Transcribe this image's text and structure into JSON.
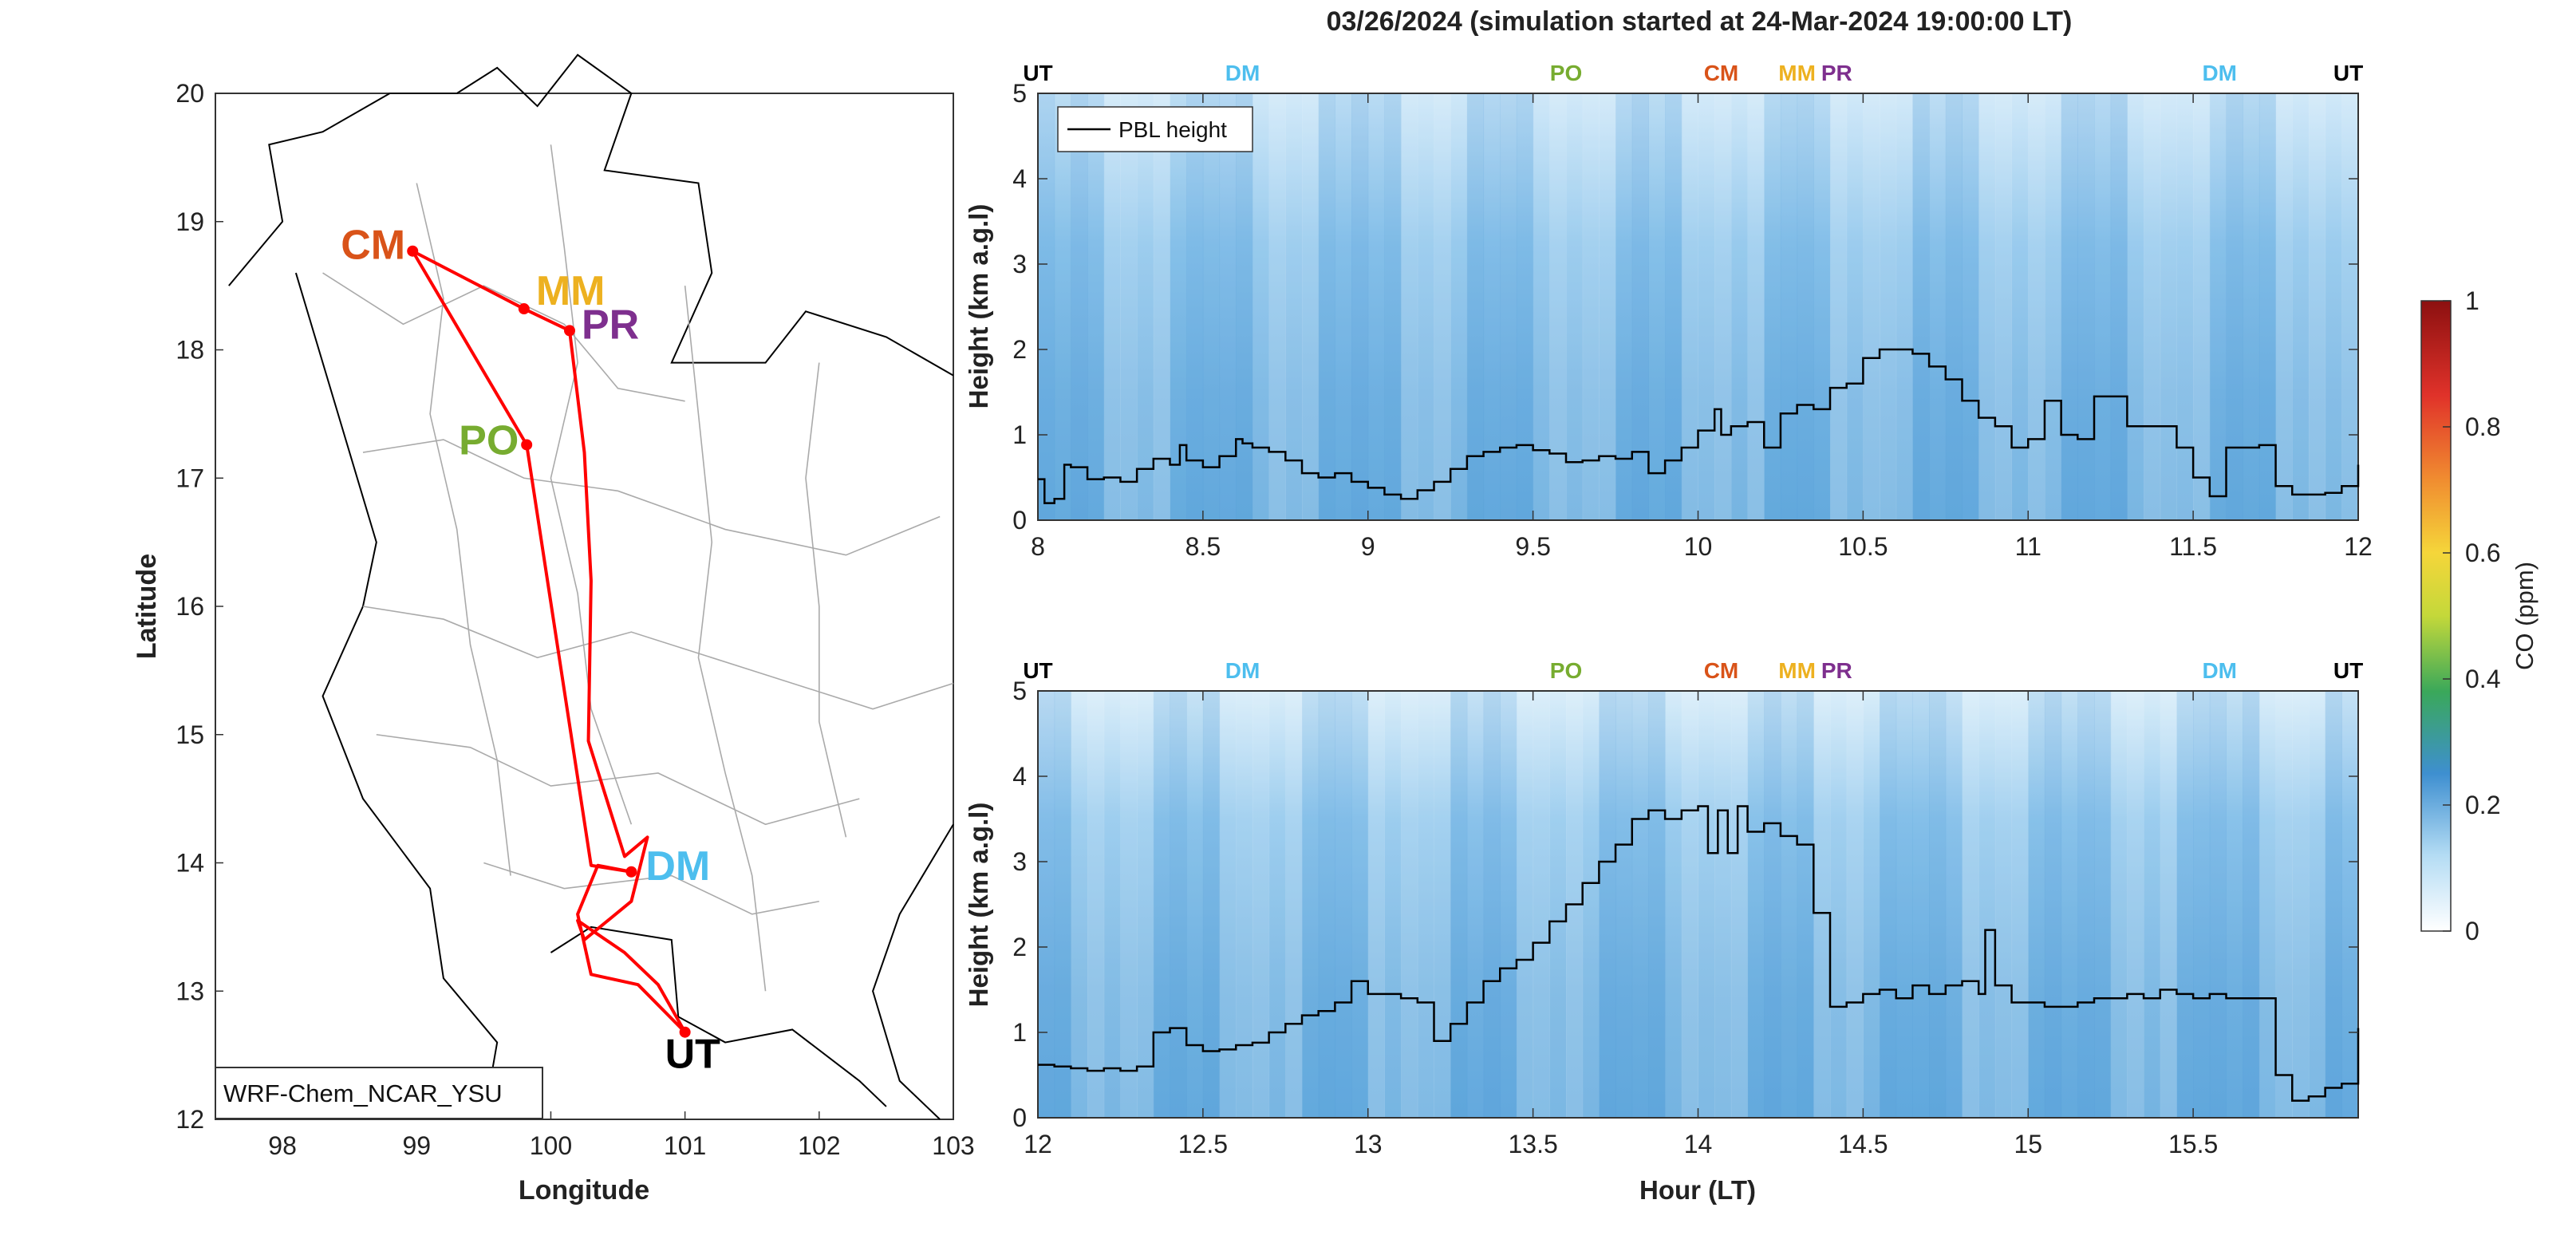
{
  "figure_title": "03/26/2024 (simulation started at 24-Mar-2024 19:00:00 LT)",
  "colors": {
    "CM": "#D95319",
    "MM": "#EDB120",
    "PR": "#7E2F8E",
    "PO": "#77AC30",
    "DM": "#4DBEEE",
    "UT": "#000000",
    "route": "#FF0000",
    "pbl_line": "#000000"
  },
  "chart_data": [
    {
      "type": "map",
      "xlabel": "Longitude",
      "ylabel": "Latitude",
      "xlim": [
        97.5,
        103
      ],
      "ylim": [
        12,
        20
      ],
      "xticks": [
        98,
        99,
        100,
        101,
        102,
        103
      ],
      "yticks": [
        12,
        13,
        14,
        15,
        16,
        17,
        18,
        19,
        20
      ],
      "legend_text": "WRF-Chem_NCAR_YSU",
      "stations": [
        {
          "name": "CM",
          "lon": 98.97,
          "lat": 18.77
        },
        {
          "name": "MM",
          "lon": 99.8,
          "lat": 18.32
        },
        {
          "name": "PR",
          "lon": 100.14,
          "lat": 18.15
        },
        {
          "name": "PO",
          "lon": 99.82,
          "lat": 17.26
        },
        {
          "name": "DM",
          "lon": 100.6,
          "lat": 13.93
        },
        {
          "name": "UT",
          "lon": 101.0,
          "lat": 12.68
        }
      ],
      "route": [
        [
          101.0,
          12.68
        ],
        [
          100.65,
          13.05
        ],
        [
          100.3,
          13.13
        ],
        [
          100.2,
          13.6
        ],
        [
          100.35,
          13.98
        ],
        [
          100.6,
          13.93
        ],
        [
          100.3,
          13.98
        ],
        [
          99.82,
          17.26
        ],
        [
          98.97,
          18.77
        ],
        [
          99.8,
          18.32
        ],
        [
          100.14,
          18.15
        ],
        [
          100.25,
          17.2
        ],
        [
          100.3,
          16.2
        ],
        [
          100.28,
          14.95
        ],
        [
          100.55,
          14.05
        ],
        [
          100.72,
          14.2
        ],
        [
          100.6,
          13.7
        ],
        [
          100.25,
          13.4
        ],
        [
          100.2,
          13.55
        ],
        [
          100.55,
          13.3
        ],
        [
          100.8,
          13.05
        ],
        [
          101.0,
          12.68
        ]
      ]
    },
    {
      "type": "heatmap",
      "xlabel": "",
      "ylabel": "Height (km a.g.l)",
      "xlim": [
        8,
        12
      ],
      "ylim": [
        0,
        5
      ],
      "xticks": [
        8,
        8.5,
        9,
        9.5,
        10,
        10.5,
        11,
        11.5,
        12
      ],
      "yticks": [
        0,
        1,
        2,
        3,
        4,
        5
      ],
      "legend": "PBL height",
      "top_labels": [
        {
          "text": "UT",
          "x": 8.0
        },
        {
          "text": "DM",
          "x": 8.62
        },
        {
          "text": "PO",
          "x": 9.6
        },
        {
          "text": "CM",
          "x": 10.07
        },
        {
          "text": "MM",
          "x": 10.3
        },
        {
          "text": "PR",
          "x": 10.42
        },
        {
          "text": "DM",
          "x": 11.58
        },
        {
          "text": "UT",
          "x": 11.97
        }
      ],
      "pbl_height": {
        "x": [
          8.0,
          8.02,
          8.05,
          8.08,
          8.1,
          8.15,
          8.2,
          8.25,
          8.3,
          8.35,
          8.4,
          8.43,
          8.45,
          8.5,
          8.55,
          8.6,
          8.62,
          8.65,
          8.7,
          8.75,
          8.8,
          8.85,
          8.9,
          8.95,
          9.0,
          9.05,
          9.1,
          9.15,
          9.2,
          9.25,
          9.3,
          9.35,
          9.4,
          9.45,
          9.5,
          9.55,
          9.6,
          9.65,
          9.7,
          9.75,
          9.8,
          9.85,
          9.9,
          9.95,
          10.0,
          10.05,
          10.07,
          10.1,
          10.15,
          10.2,
          10.25,
          10.3,
          10.35,
          10.4,
          10.45,
          10.5,
          10.55,
          10.6,
          10.65,
          10.7,
          10.75,
          10.8,
          10.85,
          10.9,
          10.95,
          11.0,
          11.05,
          11.1,
          11.15,
          11.2,
          11.25,
          11.3,
          11.35,
          11.4,
          11.45,
          11.5,
          11.55,
          11.6,
          11.65,
          11.7,
          11.75,
          11.8,
          11.85,
          11.9,
          11.95,
          12.0
        ],
        "y": [
          0.48,
          0.2,
          0.25,
          0.65,
          0.62,
          0.48,
          0.5,
          0.45,
          0.6,
          0.72,
          0.65,
          0.88,
          0.7,
          0.62,
          0.75,
          0.95,
          0.9,
          0.85,
          0.8,
          0.7,
          0.55,
          0.5,
          0.55,
          0.45,
          0.38,
          0.3,
          0.25,
          0.35,
          0.45,
          0.6,
          0.75,
          0.8,
          0.85,
          0.88,
          0.82,
          0.78,
          0.68,
          0.7,
          0.75,
          0.72,
          0.8,
          0.55,
          0.7,
          0.85,
          1.05,
          1.3,
          1.0,
          1.1,
          1.15,
          0.85,
          1.25,
          1.35,
          1.3,
          1.55,
          1.6,
          1.9,
          2.0,
          2.0,
          1.95,
          1.8,
          1.65,
          1.4,
          1.2,
          1.1,
          0.85,
          0.95,
          1.4,
          1.0,
          0.95,
          1.45,
          1.45,
          1.1,
          1.1,
          1.1,
          0.85,
          0.5,
          0.28,
          0.85,
          0.85,
          0.88,
          0.4,
          0.3,
          0.3,
          0.32,
          0.4,
          0.65
        ]
      }
    },
    {
      "type": "heatmap",
      "xlabel": "Hour (LT)",
      "ylabel": "Height (km a.g.l)",
      "xlim": [
        12,
        16
      ],
      "ylim": [
        0,
        5
      ],
      "xticks": [
        12,
        12.5,
        13,
        13.5,
        14,
        14.5,
        15,
        15.5
      ],
      "yticks": [
        0,
        1,
        2,
        3,
        4,
        5
      ],
      "top_labels": [
        {
          "text": "UT",
          "x": 12.0
        },
        {
          "text": "DM",
          "x": 12.62
        },
        {
          "text": "PO",
          "x": 13.6
        },
        {
          "text": "CM",
          "x": 14.07
        },
        {
          "text": "MM",
          "x": 14.3
        },
        {
          "text": "PR",
          "x": 14.42
        },
        {
          "text": "DM",
          "x": 15.58
        },
        {
          "text": "UT",
          "x": 15.97
        }
      ],
      "pbl_height": {
        "x": [
          12.0,
          12.05,
          12.1,
          12.15,
          12.2,
          12.25,
          12.3,
          12.35,
          12.4,
          12.45,
          12.5,
          12.55,
          12.6,
          12.65,
          12.7,
          12.75,
          12.8,
          12.85,
          12.9,
          12.95,
          13.0,
          13.05,
          13.1,
          13.15,
          13.2,
          13.25,
          13.3,
          13.35,
          13.4,
          13.45,
          13.5,
          13.55,
          13.6,
          13.65,
          13.7,
          13.75,
          13.8,
          13.85,
          13.9,
          13.95,
          14.0,
          14.03,
          14.06,
          14.09,
          14.12,
          14.15,
          14.2,
          14.25,
          14.3,
          14.35,
          14.4,
          14.45,
          14.5,
          14.55,
          14.6,
          14.65,
          14.7,
          14.75,
          14.8,
          14.85,
          14.87,
          14.9,
          14.95,
          15.0,
          15.05,
          15.1,
          15.15,
          15.2,
          15.25,
          15.3,
          15.35,
          15.4,
          15.45,
          15.5,
          15.55,
          15.6,
          15.65,
          15.7,
          15.75,
          15.8,
          15.85,
          15.9,
          15.95,
          16.0
        ],
        "y": [
          0.62,
          0.6,
          0.58,
          0.55,
          0.58,
          0.55,
          0.6,
          1.0,
          1.05,
          0.85,
          0.78,
          0.8,
          0.85,
          0.88,
          1.0,
          1.1,
          1.2,
          1.25,
          1.35,
          1.6,
          1.45,
          1.45,
          1.4,
          1.35,
          0.9,
          1.1,
          1.35,
          1.6,
          1.75,
          1.85,
          2.05,
          2.3,
          2.5,
          2.75,
          3.0,
          3.2,
          3.5,
          3.6,
          3.5,
          3.6,
          3.65,
          3.1,
          3.6,
          3.1,
          3.65,
          3.35,
          3.45,
          3.3,
          3.2,
          2.4,
          1.3,
          1.35,
          1.45,
          1.5,
          1.4,
          1.55,
          1.45,
          1.55,
          1.6,
          1.45,
          2.2,
          1.55,
          1.35,
          1.35,
          1.3,
          1.3,
          1.35,
          1.4,
          1.4,
          1.45,
          1.4,
          1.5,
          1.45,
          1.4,
          1.45,
          1.4,
          1.4,
          1.4,
          0.5,
          0.2,
          0.25,
          0.35,
          0.4,
          1.05
        ]
      }
    },
    {
      "type": "colorbar",
      "label": "CO (ppm)",
      "clim": [
        0,
        1
      ],
      "ticks": [
        0,
        0.2,
        0.4,
        0.6,
        0.8,
        1
      ],
      "tick_labels": [
        "0",
        "0.2",
        "0.4",
        "0.6",
        "0.8",
        "1"
      ]
    }
  ]
}
